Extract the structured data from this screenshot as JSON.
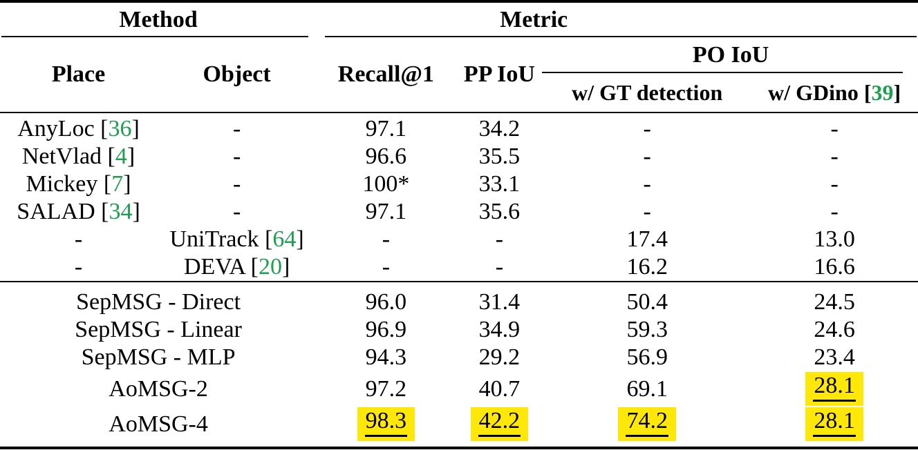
{
  "colors": {
    "citation_green": "#1e9e4f",
    "highlight_yellow": "#ffe808",
    "text": "#000000",
    "rule": "#000000",
    "background": "#ffffff"
  },
  "punct": {
    "cite_open": " [",
    "cite_close": "]"
  },
  "header": {
    "method_group": "Method",
    "metric_group": "Metric",
    "place": "Place",
    "object": "Object",
    "recall": "Recall@1",
    "pp_iou": "PP IoU",
    "po_iou": "PO IoU",
    "gt_detection": "w/ GT detection",
    "gdino": {
      "prefix": "w/ GDino",
      "cite": "39"
    }
  },
  "baseline_rows": [
    {
      "place": {
        "text": "AnyLoc",
        "cite": "36"
      },
      "object": {
        "text": "-"
      },
      "values": [
        {
          "text": "97.1"
        },
        {
          "text": "34.2"
        },
        {
          "text": "-"
        },
        {
          "text": "-"
        }
      ]
    },
    {
      "place": {
        "text": "NetVlad",
        "cite": "4"
      },
      "object": {
        "text": "-"
      },
      "values": [
        {
          "text": "96.6"
        },
        {
          "text": "35.5"
        },
        {
          "text": "-"
        },
        {
          "text": "-"
        }
      ]
    },
    {
      "place": {
        "text": "Mickey",
        "cite": "7"
      },
      "object": {
        "text": "-"
      },
      "values": [
        {
          "text": "100*"
        },
        {
          "text": "33.1"
        },
        {
          "text": "-"
        },
        {
          "text": "-"
        }
      ]
    },
    {
      "place": {
        "text": "SALAD",
        "cite": "34"
      },
      "object": {
        "text": "-"
      },
      "values": [
        {
          "text": "97.1"
        },
        {
          "text": "35.6"
        },
        {
          "text": "-"
        },
        {
          "text": "-"
        }
      ]
    },
    {
      "place": {
        "text": "-"
      },
      "object": {
        "text": "UniTrack",
        "cite": "64"
      },
      "values": [
        {
          "text": "-"
        },
        {
          "text": "-"
        },
        {
          "text": "17.4"
        },
        {
          "text": "13.0"
        }
      ]
    },
    {
      "place": {
        "text": "-"
      },
      "object": {
        "text": "DEVA",
        "cite": "20"
      },
      "values": [
        {
          "text": "-"
        },
        {
          "text": "-"
        },
        {
          "text": "16.2"
        },
        {
          "text": "16.6"
        }
      ]
    }
  ],
  "proposed_rows": [
    {
      "method": "SepMSG - Direct",
      "tall": false,
      "values": [
        {
          "text": "96.0"
        },
        {
          "text": "31.4"
        },
        {
          "text": "50.4"
        },
        {
          "text": "24.5"
        }
      ]
    },
    {
      "method": "SepMSG - Linear",
      "tall": false,
      "values": [
        {
          "text": "96.9"
        },
        {
          "text": "34.9"
        },
        {
          "text": "59.3"
        },
        {
          "text": "24.6"
        }
      ]
    },
    {
      "method": "SepMSG - MLP",
      "tall": false,
      "values": [
        {
          "text": "94.3"
        },
        {
          "text": "29.2"
        },
        {
          "text": "56.9"
        },
        {
          "text": "23.4"
        }
      ]
    },
    {
      "method": "AoMSG-2",
      "tall": true,
      "values": [
        {
          "text": "97.2"
        },
        {
          "text": "40.7"
        },
        {
          "text": "69.1"
        },
        {
          "text": "28.1",
          "highlight": true
        }
      ]
    },
    {
      "method": "AoMSG-4",
      "tall": true,
      "values": [
        {
          "text": "98.3",
          "highlight": true
        },
        {
          "text": "42.2",
          "highlight": true
        },
        {
          "text": "74.2",
          "highlight": true
        },
        {
          "text": "28.1",
          "highlight": true
        }
      ]
    }
  ]
}
